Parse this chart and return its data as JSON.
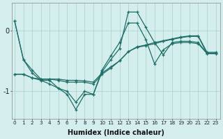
{
  "xlabel": "Humidex (Indice chaleur)",
  "bg_color": "#d4eeed",
  "line_color": "#1e6e68",
  "grid_color": "#aed4d0",
  "x_ticks": [
    0,
    1,
    2,
    3,
    4,
    5,
    6,
    7,
    8,
    9,
    10,
    11,
    12,
    13,
    14,
    15,
    16,
    17,
    18,
    19,
    20,
    21,
    22,
    23
  ],
  "y_ticks": [
    -1,
    0
  ],
  "ylim": [
    -1.45,
    0.45
  ],
  "xlim": [
    -0.3,
    23.5
  ],
  "series": [
    [
      0.15,
      -0.48,
      -0.65,
      -0.8,
      -0.8,
      -0.82,
      -0.85,
      -0.85,
      -0.85,
      -0.88,
      -0.72,
      -0.62,
      -0.5,
      -0.35,
      -0.28,
      -0.25,
      -0.22,
      -0.18,
      -0.15,
      -0.12,
      -0.1,
      -0.1,
      -0.38,
      -0.38
    ],
    [
      -0.72,
      -0.72,
      -0.78,
      -0.8,
      -0.8,
      -0.8,
      -0.82,
      -0.82,
      -0.83,
      -0.85,
      -0.7,
      -0.6,
      -0.5,
      -0.35,
      -0.27,
      -0.24,
      -0.2,
      -0.17,
      -0.14,
      -0.11,
      -0.09,
      -0.09,
      -0.36,
      -0.36
    ],
    [
      0.15,
      -0.48,
      -0.7,
      -0.82,
      -0.82,
      -0.95,
      -1.05,
      -1.3,
      -1.05,
      -1.05,
      -0.65,
      -0.42,
      -0.2,
      0.12,
      0.12,
      -0.15,
      -0.55,
      -0.32,
      -0.22,
      -0.2,
      -0.2,
      -0.22,
      -0.38,
      -0.38
    ],
    [
      -0.72,
      -0.72,
      -0.78,
      -0.82,
      -0.88,
      -0.95,
      -1.0,
      -1.18,
      -1.0,
      -1.05,
      -0.68,
      -0.48,
      -0.3,
      0.3,
      0.3,
      0.05,
      -0.2,
      -0.4,
      -0.2,
      -0.18,
      -0.18,
      -0.2,
      -0.38,
      -0.38
    ]
  ]
}
